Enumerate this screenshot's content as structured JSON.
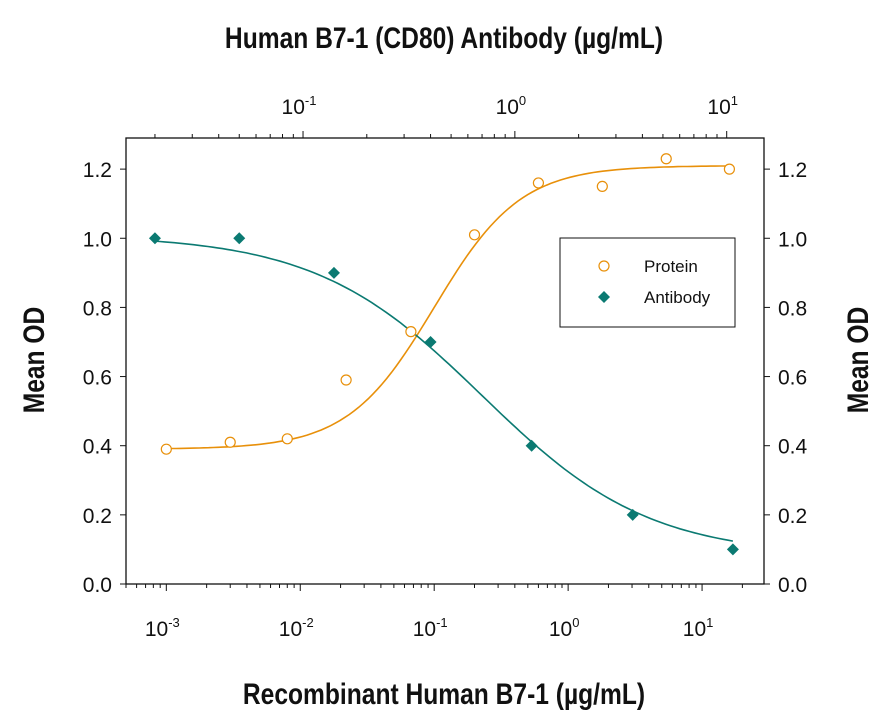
{
  "chart_data": {
    "type": "scatter",
    "title": "Human B7-1 (CD80) Antibody (µg/mL)",
    "xlabel": "Recombinant Human B7-1 (µg/mL)",
    "ylabel": "Mean OD",
    "ylabel_right": "Mean OD",
    "x_scale": "log",
    "xlim_bottom": [
      0.0005,
      29
    ],
    "xlim_top": [
      0.0146,
      15
    ],
    "ylim": [
      0,
      1.29
    ],
    "x_ticks_bottom": [
      "10-3",
      "10-2",
      "10-1",
      "100",
      "101"
    ],
    "x_ticks_top": [
      "10-1",
      "100",
      "101"
    ],
    "y_ticks": [
      "0.0",
      "0.2",
      "0.4",
      "0.6",
      "0.8",
      "1.0",
      "1.2"
    ],
    "grid": false,
    "legend_position": "upper-right",
    "colors": {
      "protein": "#E8900A",
      "antibody": "#0B7A72"
    },
    "series": [
      {
        "name": "Protein",
        "axis": "bottom",
        "marker": "open-circle",
        "x": [
          0.001,
          0.003,
          0.008,
          0.022,
          0.067,
          0.2,
          0.6,
          1.8,
          5.4,
          16
        ],
        "y": [
          0.39,
          0.41,
          0.42,
          0.59,
          0.73,
          1.01,
          1.16,
          1.15,
          1.23,
          1.2
        ]
      },
      {
        "name": "Antibody",
        "axis": "top",
        "marker": "filled-diamond",
        "x": [
          0.02,
          0.05,
          0.14,
          0.4,
          1.2,
          3.6,
          10.7
        ],
        "y": [
          1.0,
          1.0,
          0.9,
          0.7,
          0.4,
          0.2,
          0.1
        ]
      }
    ]
  }
}
